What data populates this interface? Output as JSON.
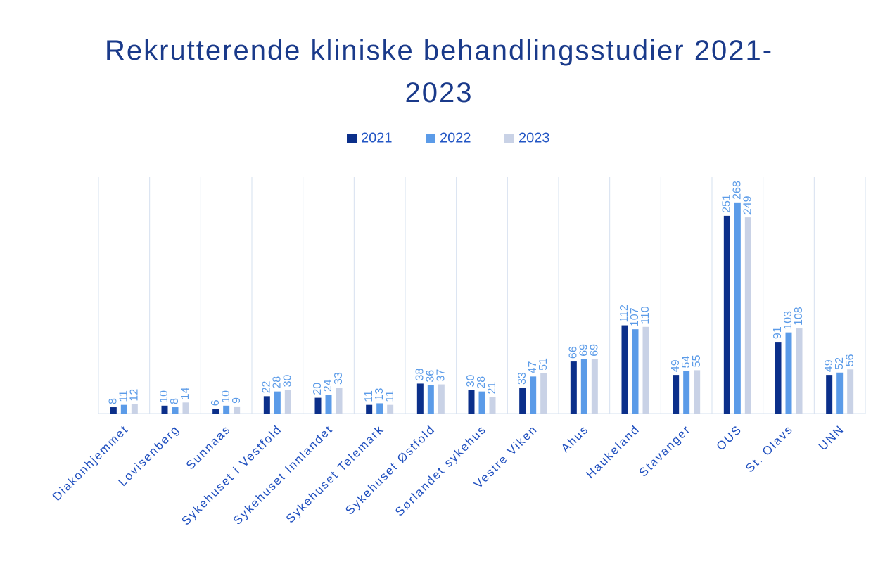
{
  "chart_data": {
    "type": "bar",
    "title": "Rekrutterende kliniske behandlingsstudier 2021-2023",
    "categories": [
      "Diakonhjemmet",
      "Lovisenberg",
      "Sunnaas",
      "Sykehuset i Vestfold",
      "Sykehuset Innlandet",
      "Sykehuset Telemark",
      "Sykehuset Østfold",
      "Sørlandet sykehus",
      "Vestre Viken",
      "Ahus",
      "Haukeland",
      "Stavanger",
      "OUS",
      "St. Olavs",
      "UNN"
    ],
    "series": [
      {
        "name": "2021",
        "color": "#0b2f8a",
        "values": [
          8,
          10,
          6,
          22,
          20,
          11,
          38,
          30,
          33,
          66,
          112,
          49,
          251,
          91,
          49
        ]
      },
      {
        "name": "2022",
        "color": "#5b9be8",
        "values": [
          11,
          8,
          10,
          28,
          24,
          13,
          36,
          28,
          47,
          69,
          107,
          54,
          268,
          103,
          52
        ]
      },
      {
        "name": "2023",
        "color": "#c9d2e6",
        "values": [
          12,
          14,
          9,
          30,
          33,
          11,
          37,
          21,
          51,
          69,
          110,
          55,
          249,
          108,
          56
        ]
      }
    ],
    "ylim": [
      0,
      300
    ],
    "legend": "top"
  }
}
